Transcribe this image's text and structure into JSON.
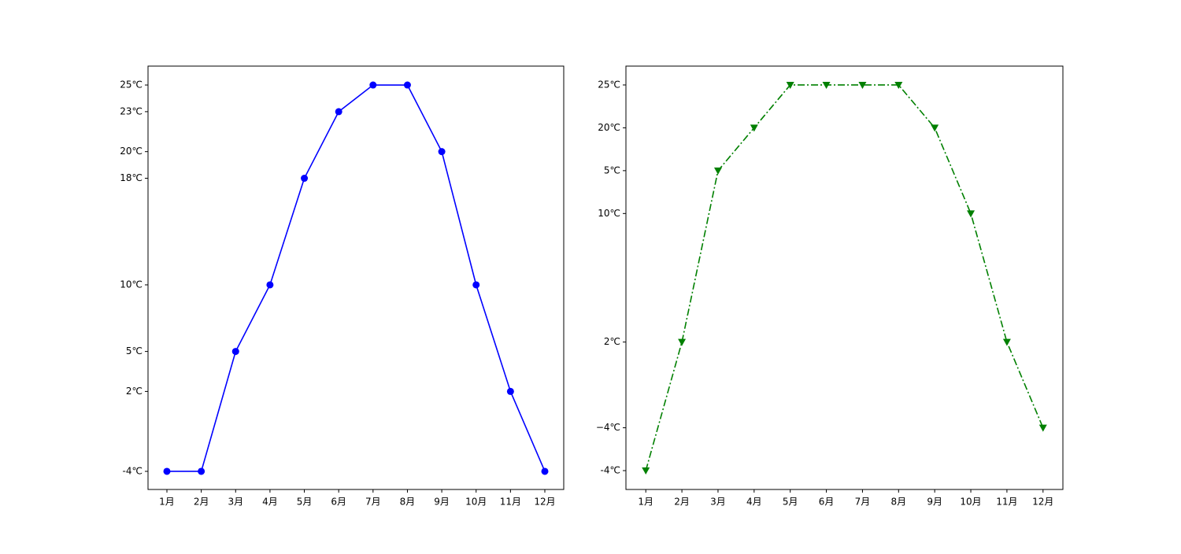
{
  "chart_data": [
    {
      "type": "line",
      "categories": [
        "1月",
        "2月",
        "3月",
        "4月",
        "5月",
        "6月",
        "7月",
        "8月",
        "9月",
        "10月",
        "11月",
        "12月"
      ],
      "series": [
        {
          "color": "#0000ff",
          "linestyle": "solid",
          "marker": "circle",
          "values": [
            -4,
            -4,
            5,
            10,
            18,
            23,
            25,
            25,
            20,
            10,
            2,
            -4
          ]
        }
      ],
      "ylim": [
        -5.36,
        26.42
      ],
      "yticks": [
        {
          "value": -4,
          "label": "-4℃"
        },
        {
          "value": 2,
          "label": "2℃"
        },
        {
          "value": 5,
          "label": "5℃"
        },
        {
          "value": 10,
          "label": "10℃"
        },
        {
          "value": 18,
          "label": "18℃"
        },
        {
          "value": 20,
          "label": "20℃"
        },
        {
          "value": 23,
          "label": "23℃"
        },
        {
          "value": 25,
          "label": "25℃"
        }
      ]
    },
    {
      "type": "line",
      "categories": [
        "1月",
        "2月",
        "3月",
        "4月",
        "5月",
        "6月",
        "7月",
        "8月",
        "9月",
        "10月",
        "11月",
        "12月"
      ],
      "y_categories": [
        "-4℃",
        "−4℃",
        null,
        "2℃",
        null,
        null,
        "10℃",
        "5℃",
        "20℃",
        "25℃"
      ],
      "series": [
        {
          "color": "#008000",
          "linestyle": "dashdot",
          "marker": "triangle-down",
          "values": [
            "-4℃",
            "2℃",
            "5℃",
            "20℃",
            "25℃",
            "25℃",
            "25℃",
            "25℃",
            "20℃",
            "10℃",
            "2℃",
            "−4℃"
          ]
        }
      ]
    }
  ]
}
